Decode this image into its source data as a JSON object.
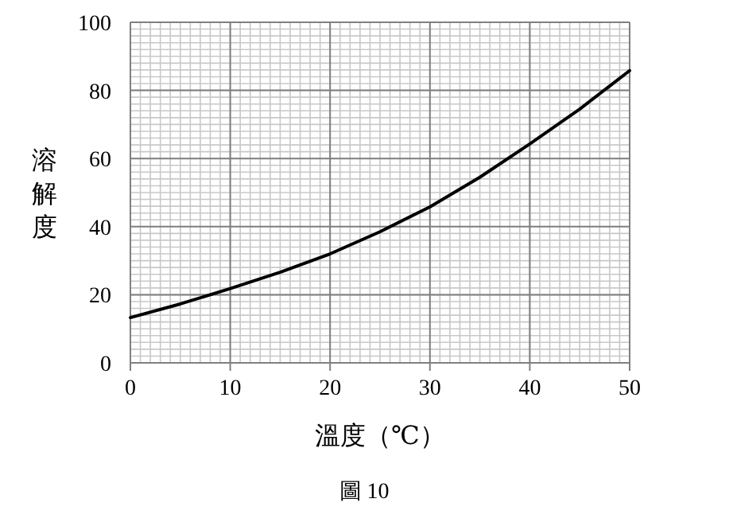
{
  "chart_data": {
    "type": "line",
    "xlabel": "溫度（℃）",
    "ylabel": "溶解度",
    "annotations": [
      "圖 10"
    ],
    "x": [
      0,
      5,
      10,
      15,
      20,
      25,
      30,
      35,
      40,
      45,
      50
    ],
    "series": [
      {
        "color": "#000000",
        "values": [
          13.3,
          17.3,
          21.8,
          26.6,
          32,
          38.5,
          45.8,
          54.5,
          64.3,
          74.5,
          85.8
        ]
      }
    ],
    "xlim": [
      0,
      50
    ],
    "ylim": [
      0,
      100
    ],
    "xticks": [
      0,
      10,
      20,
      30,
      40,
      50
    ],
    "yticks": [
      0,
      20,
      40,
      60,
      80,
      100
    ],
    "grid": true,
    "marker": "none",
    "line_style": "solid"
  }
}
